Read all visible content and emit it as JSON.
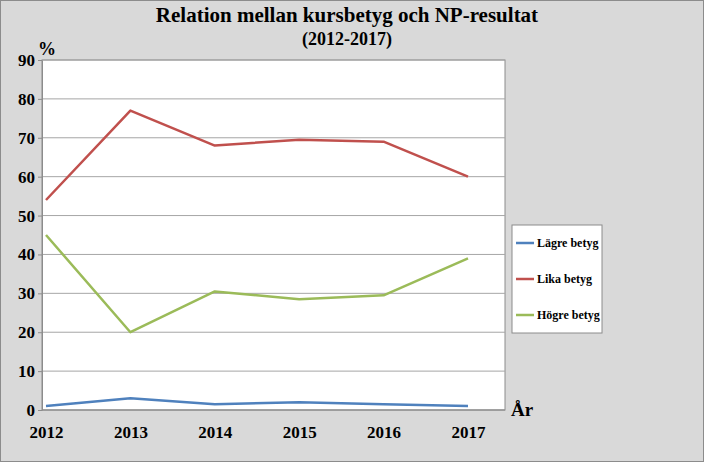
{
  "chart_data": {
    "type": "line",
    "title": "Relation mellan kursbetyg och NP-resultat",
    "subtitle": "(2012-2017)",
    "y_label": "%",
    "x_label": "År",
    "categories": [
      "2012",
      "2013",
      "2014",
      "2015",
      "2016",
      "2017"
    ],
    "series": [
      {
        "name": "Lägre betyg",
        "color": "#4f81bd",
        "values": [
          1,
          3,
          1.5,
          2,
          1.5,
          1
        ]
      },
      {
        "name": "Lika betyg",
        "color": "#c0504d",
        "values": [
          54,
          77,
          68,
          69.5,
          69,
          60
        ]
      },
      {
        "name": "Högre betyg",
        "color": "#9bbb59",
        "values": [
          45,
          20,
          30.5,
          28.5,
          29.5,
          39
        ]
      }
    ],
    "ylim": [
      0,
      90
    ],
    "yticks": [
      0,
      10,
      20,
      30,
      40,
      50,
      60,
      70,
      80,
      90
    ],
    "grid": true,
    "legend": "right"
  }
}
